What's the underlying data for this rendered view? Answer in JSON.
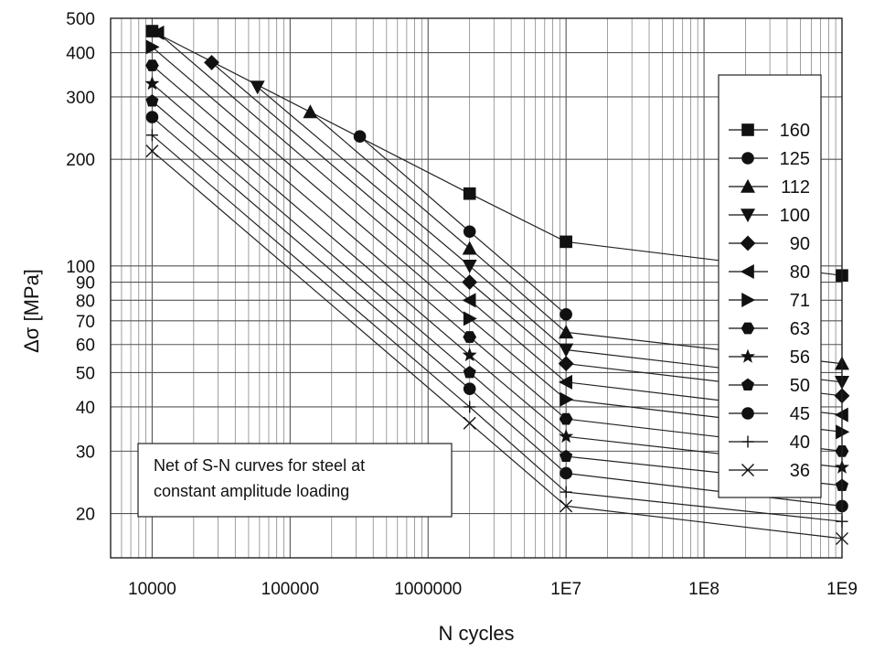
{
  "chart_data": {
    "type": "line",
    "title": "Net of S-N curves for steel at constant amplitude loading",
    "xlabel": "N cycles",
    "ylabel": "Δσ [MPa]",
    "xscale": "log",
    "yscale": "log",
    "xlim": [
      5000,
      1000000000
    ],
    "ylim": [
      15,
      500
    ],
    "xticks": [
      {
        "value": 10000,
        "label": "10000"
      },
      {
        "value": 100000,
        "label": "100000"
      },
      {
        "value": 1000000,
        "label": "1000000"
      },
      {
        "value": 10000000,
        "label": "1E7"
      },
      {
        "value": 100000000,
        "label": "1E8"
      },
      {
        "value": 1000000000,
        "label": "1E9"
      }
    ],
    "yticks": [
      {
        "value": 20,
        "label": "20"
      },
      {
        "value": 30,
        "label": "30"
      },
      {
        "value": 40,
        "label": "40"
      },
      {
        "value": 50,
        "label": "50"
      },
      {
        "value": 60,
        "label": "60"
      },
      {
        "value": 70,
        "label": "70"
      },
      {
        "value": 80,
        "label": "80"
      },
      {
        "value": 90,
        "label": "90"
      },
      {
        "value": 100,
        "label": "100"
      },
      {
        "value": 200,
        "label": "200"
      },
      {
        "value": 300,
        "label": "300"
      },
      {
        "value": 400,
        "label": "400"
      },
      {
        "value": 500,
        "label": "500"
      }
    ],
    "grid": true,
    "legend_position": "right",
    "series": [
      {
        "name": "160",
        "marker": "square",
        "x": [
          10000,
          2000000,
          10000000,
          1000000000
        ],
        "y": [
          460,
          160,
          117,
          94
        ]
      },
      {
        "name": "125",
        "marker": "circle",
        "x": [
          320000,
          2000000,
          10000000
        ],
        "y": [
          232,
          125,
          73
        ]
      },
      {
        "name": "112",
        "marker": "triangle-up",
        "x": [
          140000,
          2000000,
          10000000,
          1000000000
        ],
        "y": [
          272,
          112,
          65,
          53
        ]
      },
      {
        "name": "100",
        "marker": "triangle-down",
        "x": [
          58000,
          2000000,
          10000000,
          1000000000
        ],
        "y": [
          320,
          100,
          58,
          47
        ]
      },
      {
        "name": "90",
        "marker": "diamond",
        "x": [
          27000,
          2000000,
          10000000,
          1000000000
        ],
        "y": [
          375,
          90,
          53,
          43
        ]
      },
      {
        "name": "80",
        "marker": "triangle-left",
        "x": [
          11000,
          2000000,
          10000000,
          1000000000
        ],
        "y": [
          455,
          80,
          47,
          38
        ]
      },
      {
        "name": "71",
        "marker": "triangle-right",
        "x": [
          10000,
          2000000,
          10000000,
          1000000000
        ],
        "y": [
          415,
          71,
          42,
          34
        ]
      },
      {
        "name": "63",
        "marker": "hexagon",
        "x": [
          10000,
          2000000,
          10000000,
          1000000000
        ],
        "y": [
          368,
          63,
          37,
          30
        ]
      },
      {
        "name": "56",
        "marker": "star",
        "x": [
          10000,
          2000000,
          10000000,
          1000000000
        ],
        "y": [
          327,
          56,
          33,
          27
        ]
      },
      {
        "name": "50",
        "marker": "pentagon",
        "x": [
          10000,
          2000000,
          10000000,
          1000000000
        ],
        "y": [
          292,
          50,
          29,
          24
        ]
      },
      {
        "name": "45",
        "marker": "circle",
        "x": [
          10000,
          2000000,
          10000000,
          1000000000
        ],
        "y": [
          263,
          45,
          26,
          21
        ]
      },
      {
        "name": "40",
        "marker": "plus",
        "x": [
          10000,
          2000000,
          10000000,
          1000000000
        ],
        "y": [
          234,
          40,
          23,
          19
        ]
      },
      {
        "name": "36",
        "marker": "cross",
        "x": [
          10000,
          2000000,
          10000000,
          1000000000
        ],
        "y": [
          211,
          36,
          21,
          17
        ]
      }
    ]
  }
}
